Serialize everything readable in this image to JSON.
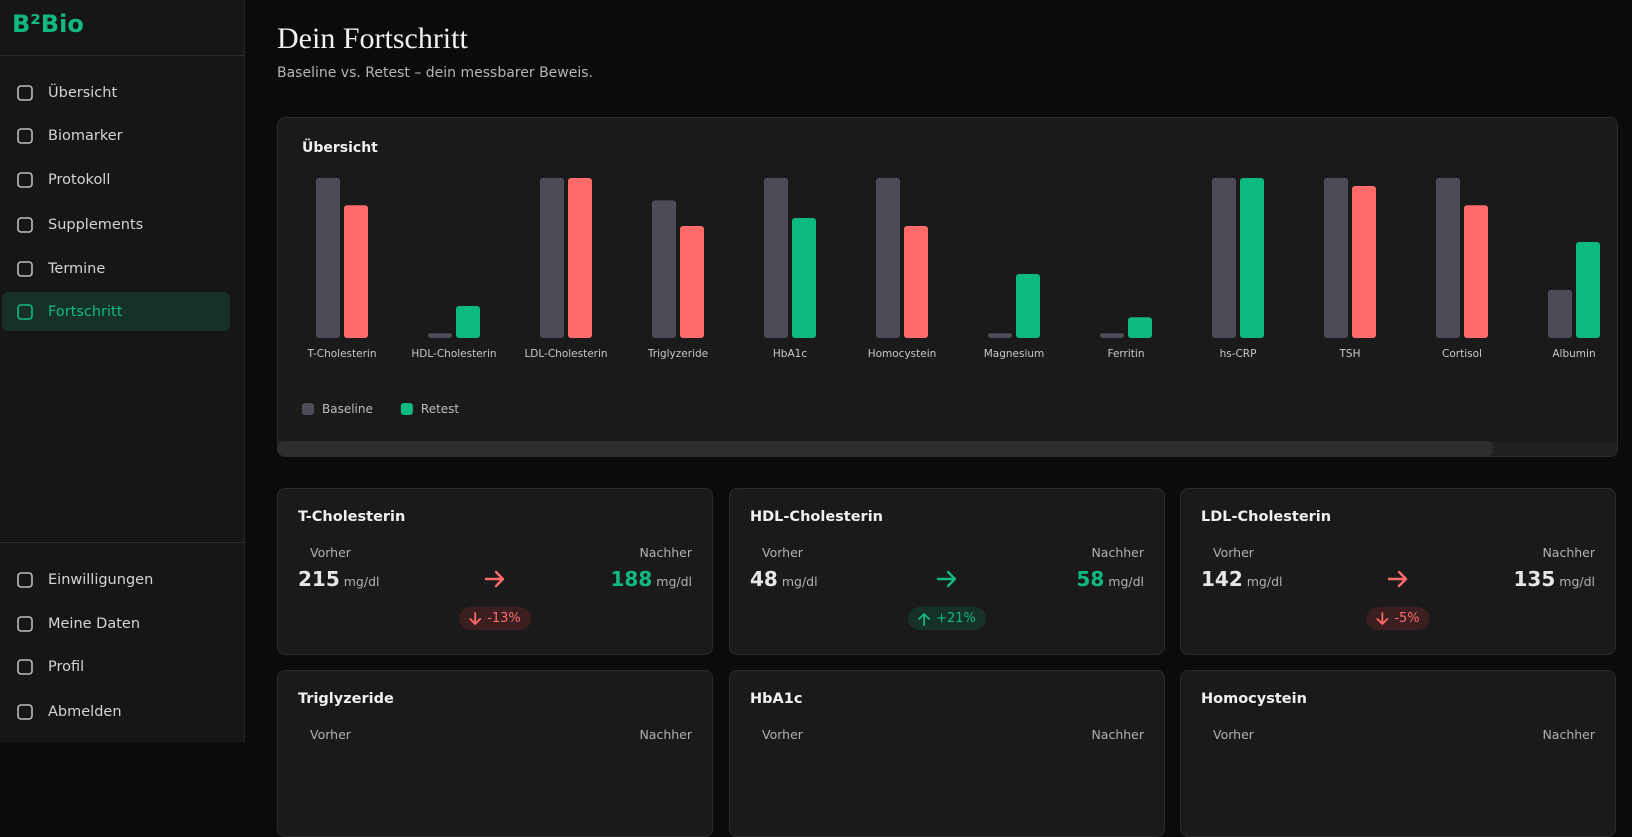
{
  "sidebar": {
    "logo": "B²Bio",
    "nav": [
      "Übersicht",
      "Biomarker",
      "Protokoll",
      "Supplements",
      "Termine",
      "Fortschritt"
    ],
    "active": 5,
    "bottom_nav": [
      "Einwilligungen",
      "Meine Daten",
      "Profil",
      "Abmelden"
    ]
  },
  "header": {
    "title": "Dein Fortschritt",
    "subtitle": "Baseline vs. Retest – dein messbarer Beweis."
  },
  "chart_data": {
    "type": "bar",
    "title": "Übersicht",
    "categories": [
      "T-Cholesterin",
      "HDL-Cholesterin",
      "LDL-Cholesterin",
      "Triglyzeride",
      "HbA1c",
      "Homocystein",
      "Magnesium",
      "Ferritin",
      "hs-CRP",
      "TSH",
      "Cortisol",
      "Albumin"
    ],
    "series": [
      {
        "name": "Baseline",
        "color": "#4e4d57",
        "values": [
          100,
          3,
          100,
          86,
          100,
          100,
          3,
          3,
          100,
          100,
          100,
          30
        ]
      },
      {
        "name": "Retest",
        "color": "#10b981",
        "values": [
          83,
          20,
          100,
          70,
          75,
          70,
          40,
          13,
          100,
          95,
          83,
          60
        ],
        "colors": [
          "#ff6b6b",
          "#10b981",
          "#ff6b6b",
          "#ff6b6b",
          "#10b981",
          "#ff6b6b",
          "#10b981",
          "#10b981",
          "#10b981",
          "#ff6b6b",
          "#ff6b6b",
          "#10b981"
        ]
      }
    ],
    "ylim": [
      0,
      100
    ]
  },
  "cards": [
    {
      "name": "T-Cholesterin",
      "before_label": "Vorher",
      "before": "215",
      "before_unit": "mg/dl",
      "after_label": "Nachher",
      "after": "188",
      "after_unit": "mg/dl",
      "after_color": "#10b981",
      "change": "-13%",
      "arrow_color": "#ff6b6b",
      "badge_color": "#ff6b6b",
      "badge_bg": "#3a1e20"
    },
    {
      "name": "HDL-Cholesterin",
      "before_label": "Vorher",
      "before": "48",
      "before_unit": "mg/dl",
      "after_label": "Nachher",
      "after": "58",
      "after_unit": "mg/dl",
      "after_color": "#10b981",
      "change": "+21%",
      "arrow_color": "#10b981",
      "badge_color": "#10b981",
      "badge_bg": "#163226"
    },
    {
      "name": "LDL-Cholesterin",
      "before_label": "Vorher",
      "before": "142",
      "before_unit": "mg/dl",
      "after_label": "Nachher",
      "after": "135",
      "after_unit": "mg/dl",
      "after_color": "#e6e6e6",
      "change": "-5%",
      "arrow_color": "#ff6b6b",
      "badge_color": "#ff6b6b",
      "badge_bg": "#3a1e20"
    },
    {
      "name": "Triglyzeride",
      "before_label": "Vorher",
      "after_label": "Nachher"
    },
    {
      "name": "HbA1c",
      "before_label": "Vorher",
      "after_label": "Nachher"
    },
    {
      "name": "Homocystein",
      "before_label": "Vorher",
      "after_label": "Nachher"
    }
  ]
}
